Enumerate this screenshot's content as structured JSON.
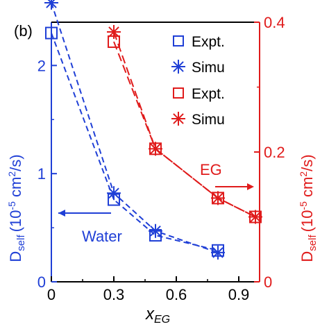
{
  "chart_data": {
    "type": "line",
    "panel_label": "(b)",
    "xlabel": "x",
    "xlabel_sub": "EG",
    "xlim": [
      0,
      1.0
    ],
    "xticks": [
      "0",
      "0.3",
      "0.6",
      "0.9"
    ],
    "xtick_values": [
      0,
      0.3,
      0.6,
      0.9
    ],
    "left_axis": {
      "label_main": "D",
      "label_sub": "self",
      "label_units": "(10",
      "label_exp": "-5",
      "label_rest": " cm",
      "label_exp2": "2",
      "label_end": "/s)",
      "color": "#1f3fd6",
      "ylim": [
        0,
        2.4
      ],
      "ticks": [
        "0",
        "1",
        "2"
      ],
      "tick_values": [
        0,
        1,
        2
      ]
    },
    "right_axis": {
      "label_main": "D",
      "label_sub": "self",
      "label_units": "(10",
      "label_exp": "-5",
      "label_rest": " cm",
      "label_exp2": "2",
      "label_end": "/s)",
      "color": "#e01b1b",
      "ylim": [
        0,
        0.4
      ],
      "ticks": [
        "0",
        "0.2",
        "0.4"
      ],
      "tick_values": [
        0,
        0.2,
        0.4
      ]
    },
    "series": [
      {
        "name": "Expt.",
        "axis": "left",
        "marker": "square",
        "color": "#1f3fd6",
        "x": [
          0,
          0.3,
          0.5,
          0.8
        ],
        "y": [
          2.3,
          0.76,
          0.43,
          0.29
        ]
      },
      {
        "name": "Simu",
        "axis": "left",
        "marker": "asterisk",
        "color": "#1f3fd6",
        "x": [
          0,
          0.3,
          0.5,
          0.8
        ],
        "y": [
          2.58,
          0.82,
          0.47,
          0.27
        ]
      },
      {
        "name": "Expt.",
        "axis": "right",
        "marker": "square",
        "color": "#e01b1b",
        "x": [
          0.3,
          0.5,
          0.8,
          0.98
        ],
        "y": [
          0.37,
          0.205,
          0.129,
          0.1
        ]
      },
      {
        "name": "Simu",
        "axis": "right",
        "marker": "asterisk",
        "color": "#e01b1b",
        "x": [
          0.3,
          0.5,
          0.8,
          0.98
        ],
        "y": [
          0.385,
          0.205,
          0.129,
          0.1
        ]
      }
    ],
    "annotations": {
      "water": "Water",
      "eg": "EG"
    },
    "legend_placement": "top-right"
  }
}
